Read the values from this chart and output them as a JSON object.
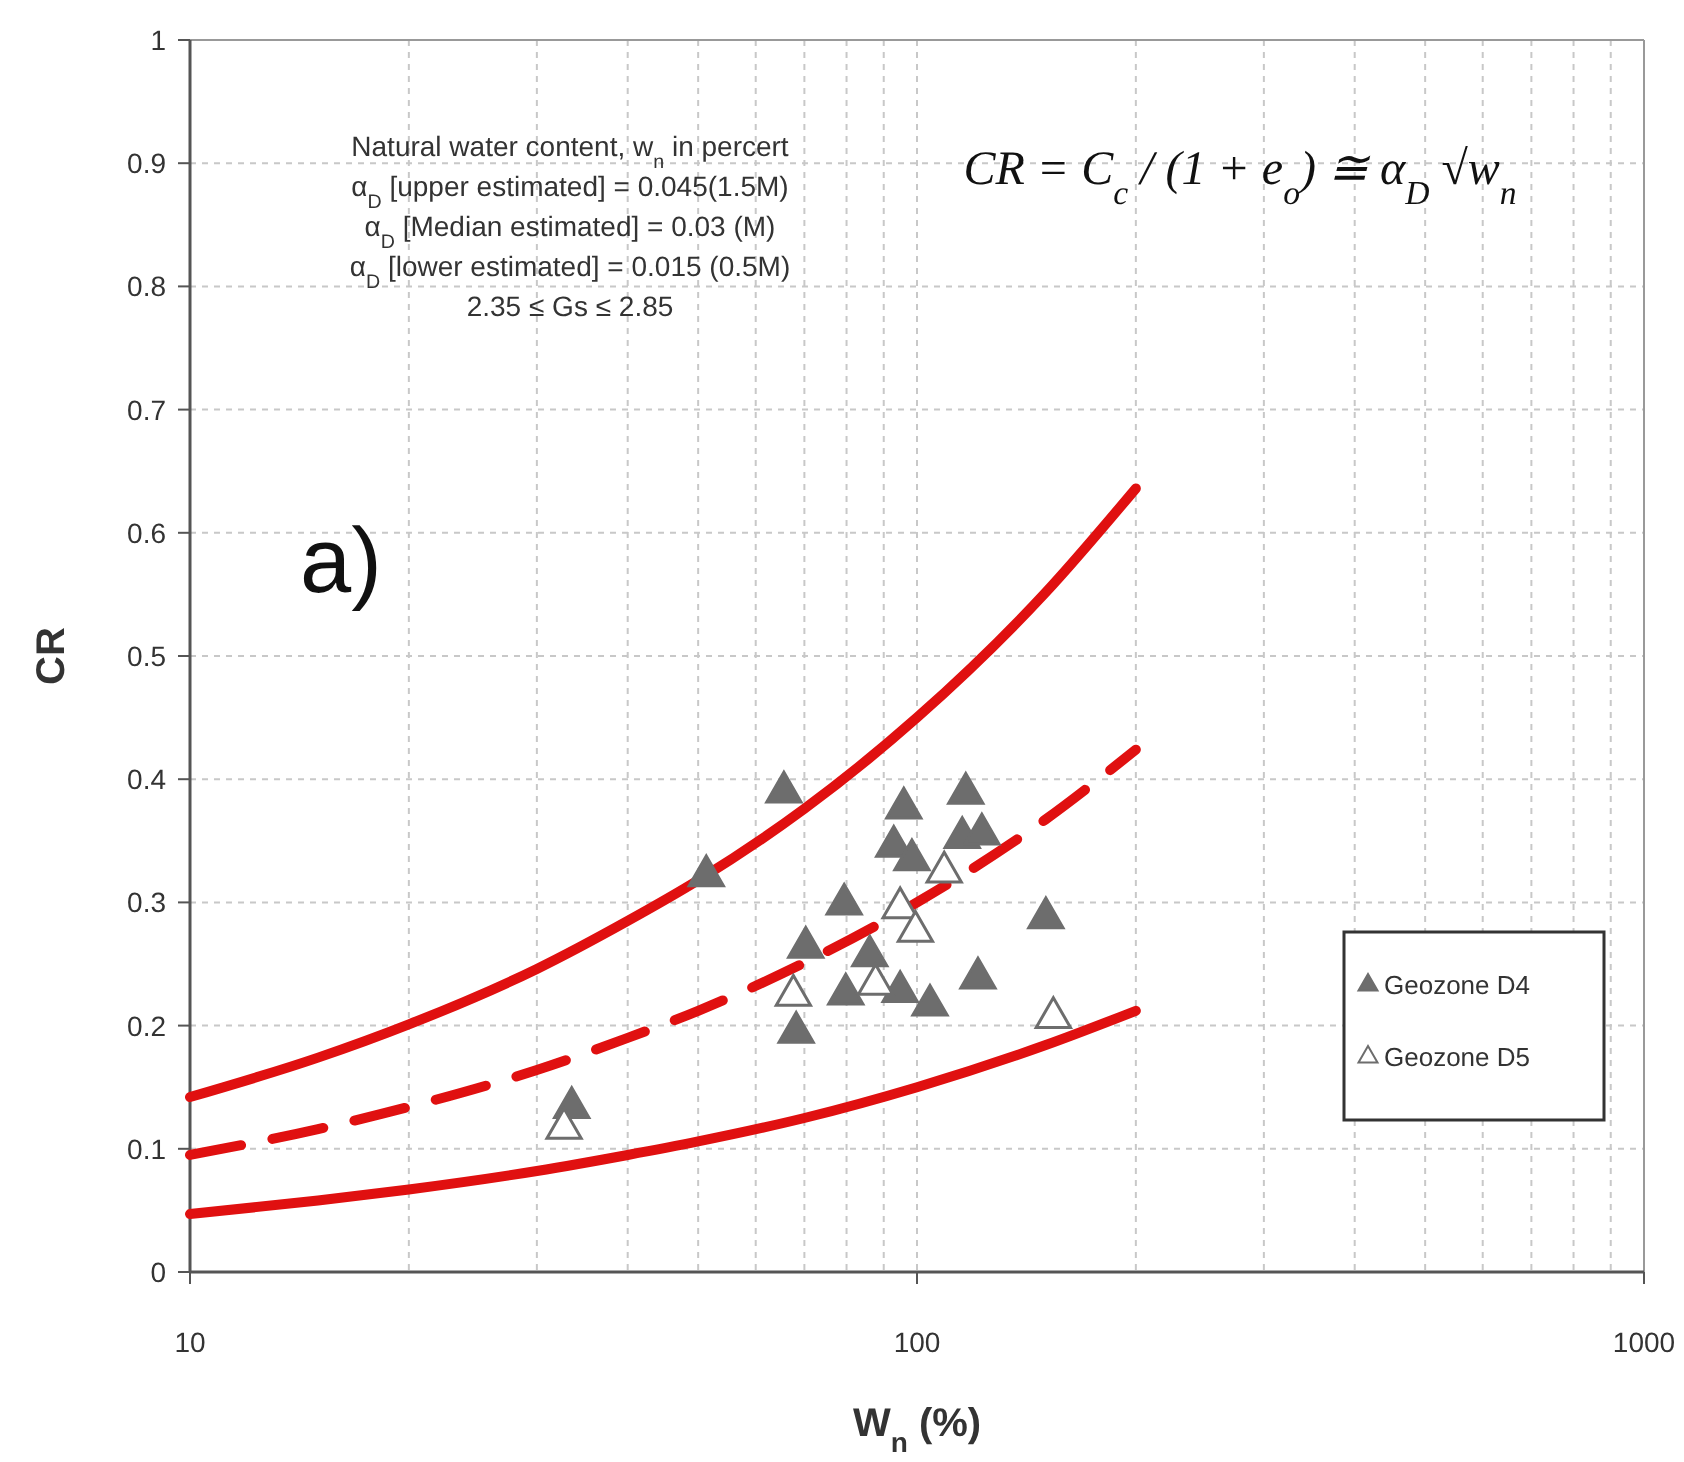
{
  "chart_data": {
    "type": "line",
    "xlabel": "W$_{n}$ (%)",
    "ylabel": "CR",
    "log": "x",
    "xlim": [
      10,
      1000
    ],
    "xticks": [
      10,
      {
        "value": 20,
        "label": null
      },
      {
        "value": 30,
        "label": null
      },
      {
        "value": 40,
        "label": null
      },
      {
        "value": 50,
        "label": null
      },
      {
        "value": 60,
        "label": null
      },
      {
        "value": 70,
        "label": null
      },
      {
        "value": 80,
        "label": null
      },
      {
        "value": 90,
        "label": null
      },
      100,
      {
        "value": 200,
        "label": null
      },
      {
        "value": 300,
        "label": null
      },
      {
        "value": 400,
        "label": null
      },
      {
        "value": 500,
        "label": null
      },
      {
        "value": 600,
        "label": null
      },
      {
        "value": 700,
        "label": null
      },
      {
        "value": 800,
        "label": null
      },
      {
        "value": 900,
        "label": null
      },
      1000
    ],
    "ylim": [
      0,
      1
    ],
    "yticks": [
      0,
      0.1,
      0.2,
      0.3,
      0.4,
      0.5,
      0.6,
      0.7,
      0.8,
      0.9,
      1
    ],
    "grid": true,
    "legend": "bottom right",
    "annotations": [
      "Natural water content, w$_{n}$ in percert",
      "α$_{D}$ [upper estimated] = 0.045(1.5M)",
      "α$_{D}$ [Median estimated] = 0.03 (M)",
      "α$_{D}$ [lower estimated] = 0.015 (0.5M)",
      "2.35 ≤ Gs ≤ 2.85",
      "CR = C$_{c}$ / (1 + e$_{o}$) ≅ α$_{D}$ √w$_{n}$",
      "a)"
    ],
    "series": [
      {
        "color": "#e01010",
        "line_style": "solid",
        "marker": "none",
        "x": [
          10,
          15,
          20,
          30,
          40,
          50,
          70,
          100,
          150,
          200
        ],
        "values": [
          0.142,
          0.174,
          0.201,
          0.246,
          0.285,
          0.318,
          0.376,
          0.45,
          0.551,
          0.636
        ]
      },
      {
        "color": "#e01010",
        "line_style": "dashed",
        "marker": "none",
        "x": [
          10,
          15,
          20,
          30,
          40,
          50,
          70,
          100,
          150,
          200
        ],
        "values": [
          0.095,
          0.116,
          0.134,
          0.164,
          0.19,
          0.212,
          0.251,
          0.3,
          0.367,
          0.424
        ]
      },
      {
        "color": "#e01010",
        "line_style": "solid",
        "marker": "none",
        "x": [
          10,
          15,
          20,
          30,
          40,
          50,
          70,
          100,
          150,
          200
        ],
        "values": [
          0.047,
          0.058,
          0.067,
          0.082,
          0.095,
          0.106,
          0.125,
          0.15,
          0.184,
          0.212
        ]
      },
      {
        "type": "scatter",
        "name": "Geozone D4",
        "color": "#6d6d6d",
        "marker": "triangle",
        "x": [
          33.5,
          51.3,
          65.6,
          95.9,
          116.7,
          92.9,
          98.4,
          115.4,
          122.8,
          79.4,
          150.4,
          70.3,
          86.1,
          79.8,
          94.8,
          104.2,
          121.3,
          68.2
        ],
        "values": [
          0.135,
          0.323,
          0.391,
          0.378,
          0.39,
          0.347,
          0.336,
          0.354,
          0.357,
          0.3,
          0.289,
          0.265,
          0.258,
          0.227,
          0.229,
          0.218,
          0.24,
          0.196
        ]
      },
      {
        "type": "scatter",
        "name": "Geozone D5",
        "color": "#ffffff",
        "marker": "triangle",
        "x": [
          94.8,
          99.5,
          109,
          87.7,
          67.6,
          154,
          32.7
        ],
        "values": [
          0.297,
          0.278,
          0.326,
          0.235,
          0.226,
          0.208,
          0.118
        ]
      }
    ]
  }
}
